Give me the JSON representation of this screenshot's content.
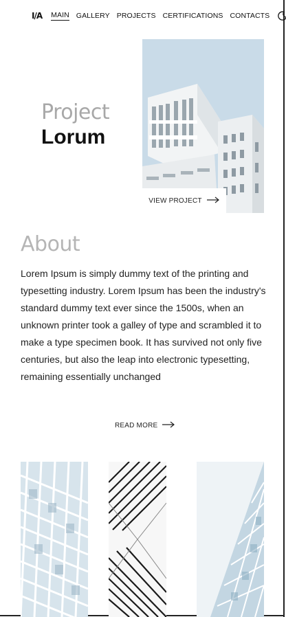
{
  "nav": {
    "logo": "I/A",
    "items": [
      "MAIN",
      "GALLERY",
      "PROJECTS",
      "CERTIFICATIONS",
      "CONTACTS"
    ],
    "active": "MAIN"
  },
  "hero": {
    "title_light": "Project",
    "title_bold": "Lorum",
    "cta": "VIEW PROJECT"
  },
  "about": {
    "title": "About",
    "text": "Lorem Ipsum is simply dummy text of the printing and typesetting industry. Lorem Ipsum has been the industry's standard dummy text ever since the 1500s, when an unknown printer took a galley of type and scrambled it to make a type specimen book. It has survived not only five centuries, but also the leap into electronic typesetting, remaining essentially unchanged",
    "cta": "READ MORE"
  },
  "icons": {
    "theme": "moon-icon",
    "arrow": "arrow-right-icon"
  }
}
